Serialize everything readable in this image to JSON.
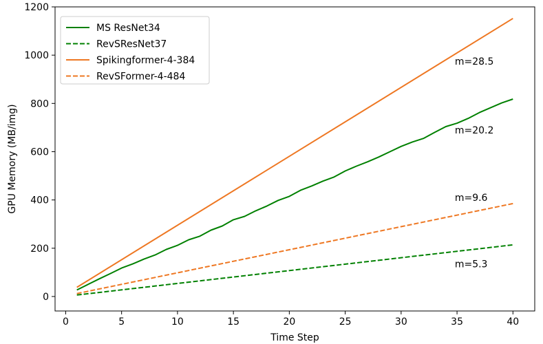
{
  "chart_data": {
    "type": "line",
    "title": "",
    "xlabel": "Time Step",
    "ylabel": "GPU Memory (MB/img)",
    "xlim": [
      -0.95,
      41.95
    ],
    "ylim": [
      -60,
      1200
    ],
    "xticks": [
      0,
      5,
      10,
      15,
      20,
      25,
      30,
      35,
      40
    ],
    "yticks": [
      0,
      200,
      400,
      600,
      800,
      1000,
      1200
    ],
    "grid": false,
    "legend": "top-left",
    "series": [
      {
        "name": "MS ResNet34",
        "color": "#008000",
        "dash": "solid",
        "x": [
          1,
          2,
          3,
          4,
          5,
          6,
          7,
          8,
          9,
          10,
          11,
          12,
          13,
          14,
          15,
          16,
          17,
          18,
          19,
          20,
          21,
          22,
          23,
          24,
          25,
          26,
          27,
          28,
          29,
          30,
          31,
          32,
          33,
          34,
          35,
          36,
          37,
          38,
          39,
          40
        ],
        "y": [
          27,
          50,
          73,
          95,
          118,
          135,
          155,
          172,
          195,
          212,
          235,
          250,
          275,
          292,
          318,
          332,
          355,
          375,
          398,
          415,
          440,
          458,
          478,
          495,
          520,
          540,
          558,
          578,
          600,
          622,
          640,
          655,
          680,
          704,
          718,
          738,
          762,
          782,
          802,
          818
        ]
      },
      {
        "name": "RevSResNet37",
        "color": "#008000",
        "dash": "dashed",
        "x": [
          1,
          40
        ],
        "y": [
          6,
          214
        ]
      },
      {
        "name": "Spikingformer-4-384",
        "color": "#ee7722",
        "dash": "solid",
        "x": [
          1,
          40
        ],
        "y": [
          38,
          1152
        ]
      },
      {
        "name": "RevSFormer-4-484",
        "color": "#ee7722",
        "dash": "dashed",
        "x": [
          1,
          40
        ],
        "y": [
          12,
          385
        ]
      }
    ],
    "annotations": [
      {
        "text": "m=28.5",
        "x": 34.8,
        "y": 975
      },
      {
        "text": "m=20.2",
        "x": 34.8,
        "y": 690
      },
      {
        "text": "m=9.6",
        "x": 34.8,
        "y": 410
      },
      {
        "text": "m=5.3",
        "x": 34.8,
        "y": 135
      }
    ]
  }
}
